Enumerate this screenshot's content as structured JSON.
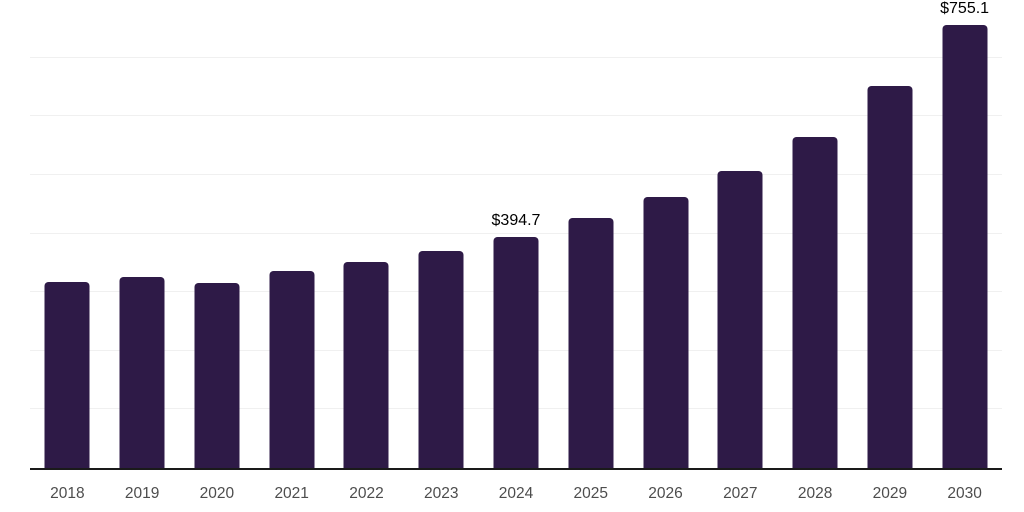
{
  "chart_data": {
    "type": "bar",
    "title": "",
    "xlabel": "",
    "ylabel": "",
    "categories": [
      "2018",
      "2019",
      "2020",
      "2021",
      "2022",
      "2023",
      "2024",
      "2025",
      "2026",
      "2027",
      "2028",
      "2029",
      "2030"
    ],
    "values": [
      318,
      325,
      315,
      336,
      351,
      370,
      394.7,
      426,
      463,
      507,
      564,
      651,
      755.1
    ],
    "labeled_points": [
      {
        "category": "2024",
        "label": "$394.7"
      },
      {
        "category": "2030",
        "label": "$755.1"
      }
    ],
    "ylim": [
      0,
      800
    ],
    "gridline_interval": 100,
    "grid": "horizontal",
    "legend": "none",
    "y_tick_labels_visible": false,
    "currency_prefix": "$"
  },
  "style": {
    "bar_color": "#2e1a47",
    "gridline_color": "#f0f0f0",
    "axis_line_color": "#1a1a1a",
    "tick_label_color": "#4d4d4d",
    "data_label_color": "#000000",
    "background_color": "#ffffff"
  }
}
